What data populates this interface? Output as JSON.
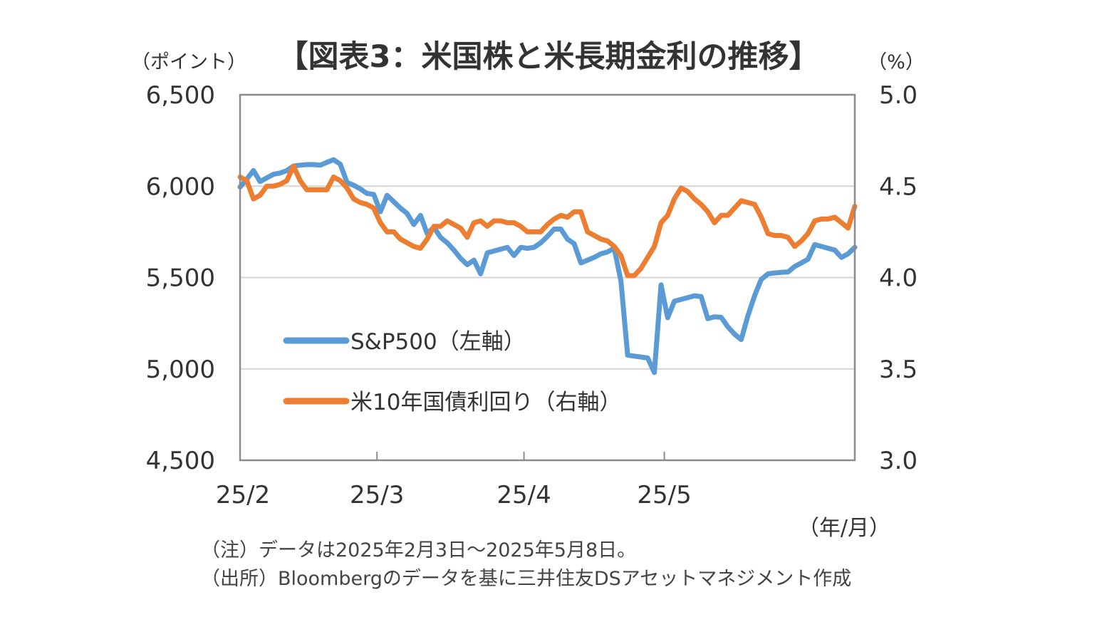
{
  "chart_data": {
    "type": "line",
    "title": "【図表3：米国株と米長期金利の推移】",
    "ylabel_left": "（ポイント）",
    "ylabel_right": "（%）",
    "xlabel": "（年/月）",
    "ylim_left": [
      4500,
      6500
    ],
    "ylim_right": [
      3.0,
      5.0
    ],
    "yticks_left": [
      "6,500",
      "6,000",
      "5,500",
      "5,000",
      "4,500"
    ],
    "yticks_right": [
      "5.0",
      "4.5",
      "4.0",
      "3.5",
      "3.0"
    ],
    "xticks": [
      "25/2",
      "25/3",
      "25/4",
      "25/5"
    ],
    "grid": true,
    "legend_position": "lower-left inside plot",
    "series": [
      {
        "name": "S&P500（左軸）",
        "axis": "left",
        "color": "#5B9BD5",
        "values": [
          5995,
          6038,
          6085,
          6025,
          6045,
          6065,
          6072,
          6085,
          6110,
          6115,
          6118,
          6118,
          6115,
          6130,
          6145,
          6120,
          6020,
          6005,
          5985,
          5960,
          5955,
          5860,
          5950,
          5915,
          5880,
          5850,
          5790,
          5840,
          5740,
          5775,
          5720,
          5690,
          5650,
          5605,
          5570,
          5595,
          5520,
          5635,
          5645,
          5655,
          5665,
          5620,
          5665,
          5660,
          5665,
          5690,
          5725,
          5765,
          5765,
          5710,
          5685,
          5580,
          5595,
          5610,
          5630,
          5640,
          5660,
          5480,
          5075,
          5070,
          5065,
          5060,
          4980,
          5460,
          5280,
          5370,
          5380,
          5390,
          5400,
          5395,
          5275,
          5285,
          5282,
          5230,
          5190,
          5160,
          5290,
          5400,
          5490,
          5520,
          5525,
          5528,
          5530,
          5560,
          5580,
          5600,
          5680,
          5670,
          5660,
          5650,
          5610,
          5630,
          5665
        ]
      },
      {
        "name": "米10年国債利回り（右軸）",
        "axis": "right",
        "color": "#ED7D31",
        "values": [
          4.55,
          4.53,
          4.43,
          4.45,
          4.5,
          4.5,
          4.51,
          4.53,
          4.61,
          4.53,
          4.48,
          4.48,
          4.48,
          4.48,
          4.55,
          4.53,
          4.49,
          4.43,
          4.41,
          4.4,
          4.38,
          4.3,
          4.25,
          4.25,
          4.21,
          4.19,
          4.17,
          4.16,
          4.21,
          4.28,
          4.28,
          4.31,
          4.29,
          4.27,
          4.22,
          4.3,
          4.31,
          4.28,
          4.31,
          4.31,
          4.3,
          4.3,
          4.28,
          4.25,
          4.25,
          4.25,
          4.29,
          4.32,
          4.34,
          4.33,
          4.36,
          4.36,
          4.25,
          4.23,
          4.21,
          4.2,
          4.17,
          4.12,
          4.01,
          4.01,
          4.05,
          4.11,
          4.17,
          4.3,
          4.34,
          4.43,
          4.49,
          4.47,
          4.43,
          4.4,
          4.36,
          4.3,
          4.34,
          4.34,
          4.38,
          4.42,
          4.41,
          4.4,
          4.33,
          4.24,
          4.23,
          4.23,
          4.22,
          4.17,
          4.2,
          4.24,
          4.31,
          4.32,
          4.32,
          4.33,
          4.3,
          4.27,
          4.39
        ]
      }
    ]
  },
  "notes": {
    "note1": "（注）データは2025年2月3日～2025年5月8日。",
    "note2": "（出所）Bloombergのデータを基に三井住友DSアセットマネジメント作成"
  }
}
